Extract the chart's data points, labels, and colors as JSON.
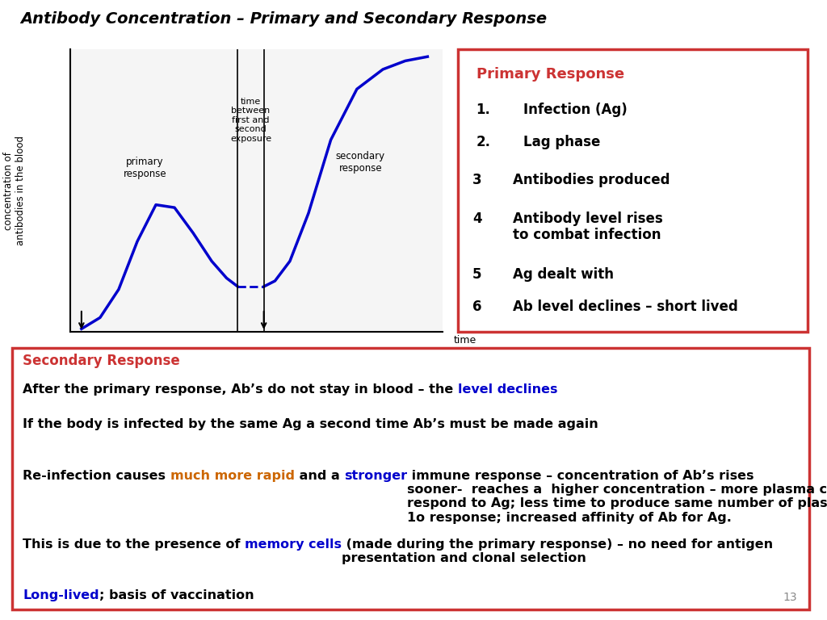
{
  "title": "Antibody Concentration – Primary and Secondary Response",
  "title_bg": "#ffffcc",
  "title_color": "#000000",
  "title_fontsize": 14,
  "bg_color": "#ffffff",
  "border_color": "#cc3333",
  "primary_response_title": "Primary Response",
  "primary_response_color": "#cc3333",
  "primary_items": [
    {
      "num": "1.",
      "text": "Infection (Ag)",
      "indent": true
    },
    {
      "num": "2.",
      "text": "Lag phase",
      "indent": true
    },
    {
      "num": "3",
      "text": "Antibodies produced",
      "indent": false
    },
    {
      "num": "4",
      "text": "Antibody level rises\nto combat infection",
      "indent": false
    },
    {
      "num": "5",
      "text": "Ag dealt with",
      "indent": false
    },
    {
      "num": "6",
      "text": "Ab level declines – short lived",
      "indent": false
    }
  ],
  "secondary_title": "Secondary Response",
  "secondary_title_color": "#cc3333",
  "curve_color": "#0000cc",
  "dashed_color": "#0000cc",
  "vline_color": "#000000",
  "graph_ylabel": "concentration of\nantibodies in the blood",
  "graph_xlabel": "time",
  "graph_annot_primary": "primary\nresponse",
  "graph_annot_time_between": "time\nbetween\nfirst and\nsecond\nexposure",
  "graph_annot_secondary": "secondary\nresponse",
  "graph_first_dose": "first dose of\nantigen",
  "graph_second_dose": "second dose\nof antigen",
  "page_number": "13"
}
